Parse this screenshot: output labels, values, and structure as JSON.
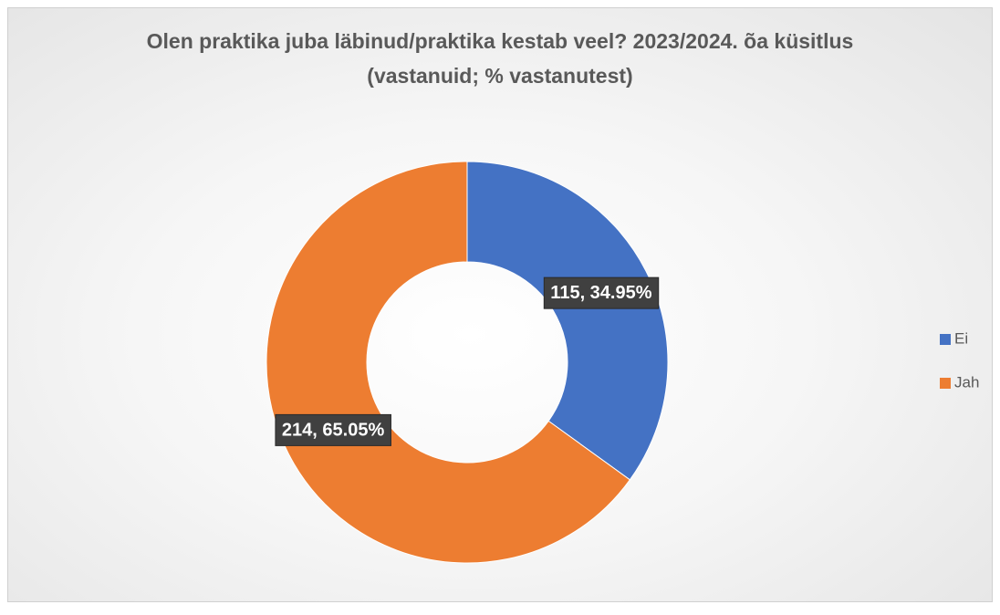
{
  "chart_data": {
    "type": "doughnut",
    "title": "Olen praktika juba läbinud/praktika kestab veel? 2023/2024. õa küsitlus (vastanuid; % vastanutest)",
    "categories": [
      "Ei",
      "Jah"
    ],
    "values": [
      115,
      214
    ],
    "value_labels": [
      "115, 34.95%",
      "214, 65.05%"
    ],
    "colors": [
      "#4472c4",
      "#ed7d31"
    ],
    "legend": "right"
  }
}
